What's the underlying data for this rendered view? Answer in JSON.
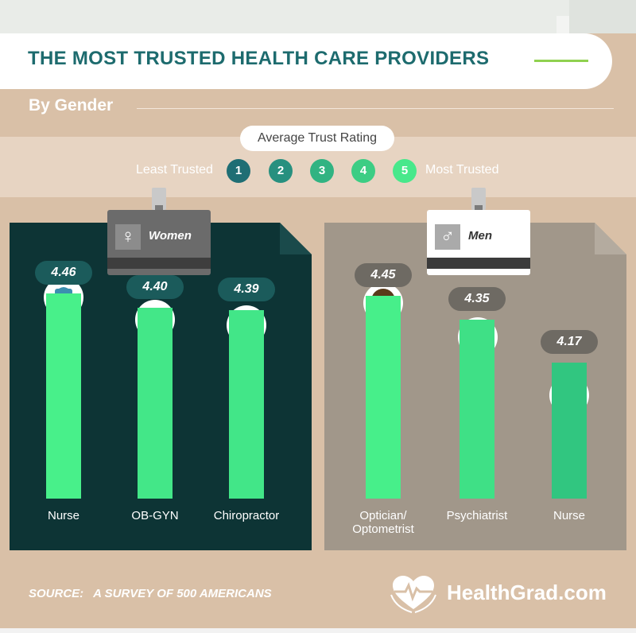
{
  "header": {
    "title": "THE MOST TRUSTED HEALTH CARE PROVIDERS",
    "subtitle": "By Gender"
  },
  "legend": {
    "title": "Average Trust Rating",
    "left_label": "Least Trusted",
    "right_label": "Most Trusted",
    "levels": [
      "1",
      "2",
      "3",
      "4",
      "5"
    ],
    "colors": [
      "#1f6e74",
      "#27907f",
      "#31b382",
      "#3ccd84",
      "#48e88b"
    ]
  },
  "chart_data": [
    {
      "type": "bar",
      "group": "Women",
      "categories": [
        "Nurse",
        "OB-GYN",
        "Chiropractor"
      ],
      "values": [
        4.46,
        4.4,
        4.39
      ],
      "value_labels": [
        "4.46",
        "4.40",
        "4.39"
      ]
    },
    {
      "type": "bar",
      "group": "Men",
      "categories": [
        "Optician/ Optometrist",
        "Psychiatrist",
        "Nurse"
      ],
      "category_lines": [
        [
          "Optician/",
          "Optometrist"
        ],
        [
          "Psychiatrist"
        ],
        [
          "Nurse"
        ]
      ],
      "values": [
        4.45,
        4.35,
        4.17
      ],
      "value_labels": [
        "4.45",
        "4.35",
        "4.17"
      ]
    }
  ],
  "panels": {
    "women_label": "Women",
    "men_label": "Men",
    "women_symbol": "♀",
    "men_symbol": "♂"
  },
  "colors": {
    "women_panel": "#0d3435",
    "men_panel": "#a1978a",
    "value_pill_women": "#1b5b5b",
    "value_pill_men": "#6e6a63",
    "bar_high": "#48f08a",
    "bar_low": "#31c680"
  },
  "footer": {
    "source_label": "SOURCE:",
    "source_text": "A SURVEY OF 500 AMERICANS",
    "brand": "HealthGrad.com",
    "brand_icon": "heart-pulse-icon"
  }
}
